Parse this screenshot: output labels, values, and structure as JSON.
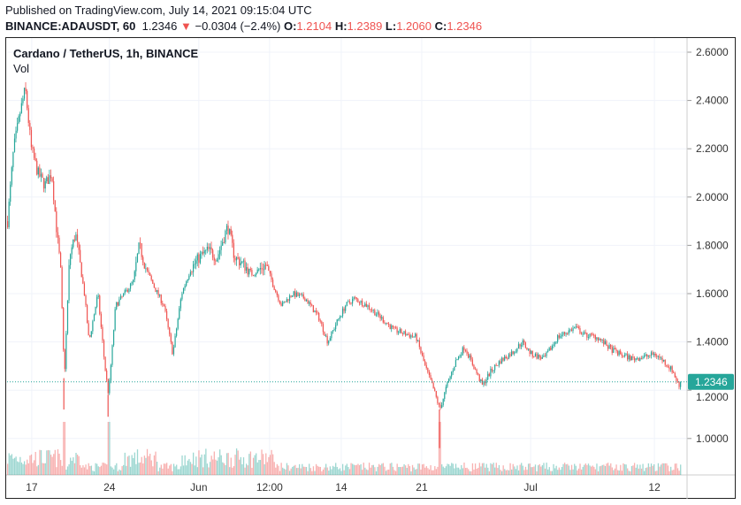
{
  "header": {
    "published": "Published on TradingView.com, July 14, 2021 09:15:04 UTC",
    "symbol": "BINANCE:ADAUSDT, 60",
    "last": "1.2346",
    "arrow": "▼",
    "change": "−0.0304 (−2.4%)",
    "o_label": "O:",
    "o": "1.2104",
    "h_label": "H:",
    "h": "1.2389",
    "l_label": "L:",
    "l": "1.2060",
    "c_label": "C:",
    "c": "1.2346"
  },
  "legend": {
    "title": "Cardano / TetherUS, 1h, BINANCE",
    "vol": "Vol"
  },
  "colors": {
    "up": "#26a69a",
    "down": "#ef5350"
  },
  "chart_data": {
    "type": "candlestick",
    "title": "Cardano / TetherUS, 1h, BINANCE",
    "ylim": [
      0.8,
      2.65
    ],
    "yticks": [
      "2.6000",
      "2.4000",
      "2.2000",
      "2.0000",
      "1.8000",
      "1.6000",
      "1.4000",
      "1.2000",
      "1.0000"
    ],
    "xticks": [
      {
        "label": "17",
        "h": 53
      },
      {
        "label": "24",
        "h": 220
      },
      {
        "label": "Jun",
        "h": 412
      },
      {
        "label": "12:00",
        "h": 564
      },
      {
        "label": "14",
        "h": 718
      },
      {
        "label": "21",
        "h": 891
      },
      {
        "label": "Jul",
        "h": 1125
      },
      {
        "label": "12",
        "h": 1391
      }
    ],
    "current_price": "1.2346",
    "close_path_hours_price": [
      [
        0,
        1.9
      ],
      [
        13,
        2.2
      ],
      [
        27,
        2.35
      ],
      [
        38,
        2.45
      ],
      [
        51,
        2.2
      ],
      [
        65,
        2.1
      ],
      [
        80,
        2.05
      ],
      [
        95,
        2.1
      ],
      [
        106,
        1.85
      ],
      [
        114,
        1.7
      ],
      [
        122,
        1.25
      ],
      [
        133,
        1.75
      ],
      [
        146,
        1.85
      ],
      [
        165,
        1.6
      ],
      [
        175,
        1.4
      ],
      [
        194,
        1.6
      ],
      [
        209,
        1.3
      ],
      [
        217,
        1.18
      ],
      [
        232,
        1.55
      ],
      [
        251,
        1.6
      ],
      [
        270,
        1.65
      ],
      [
        283,
        1.8
      ],
      [
        298,
        1.7
      ],
      [
        317,
        1.62
      ],
      [
        336,
        1.55
      ],
      [
        355,
        1.35
      ],
      [
        374,
        1.6
      ],
      [
        393,
        1.7
      ],
      [
        412,
        1.75
      ],
      [
        431,
        1.78
      ],
      [
        450,
        1.75
      ],
      [
        473,
        1.88
      ],
      [
        488,
        1.75
      ],
      [
        507,
        1.72
      ],
      [
        526,
        1.68
      ],
      [
        555,
        1.72
      ],
      [
        574,
        1.62
      ],
      [
        589,
        1.55
      ],
      [
        612,
        1.6
      ],
      [
        640,
        1.58
      ],
      [
        669,
        1.5
      ],
      [
        688,
        1.4
      ],
      [
        707,
        1.48
      ],
      [
        726,
        1.55
      ],
      [
        745,
        1.58
      ],
      [
        773,
        1.55
      ],
      [
        802,
        1.5
      ],
      [
        830,
        1.45
      ],
      [
        859,
        1.43
      ],
      [
        878,
        1.42
      ],
      [
        897,
        1.3
      ],
      [
        916,
        1.2
      ],
      [
        929,
        1.12
      ],
      [
        944,
        1.22
      ],
      [
        963,
        1.32
      ],
      [
        982,
        1.38
      ],
      [
        1001,
        1.3
      ],
      [
        1020,
        1.22
      ],
      [
        1039,
        1.28
      ],
      [
        1058,
        1.32
      ],
      [
        1087,
        1.36
      ],
      [
        1106,
        1.4
      ],
      [
        1125,
        1.35
      ],
      [
        1153,
        1.33
      ],
      [
        1182,
        1.42
      ],
      [
        1201,
        1.44
      ],
      [
        1220,
        1.46
      ],
      [
        1239,
        1.43
      ],
      [
        1267,
        1.42
      ],
      [
        1296,
        1.37
      ],
      [
        1315,
        1.35
      ],
      [
        1343,
        1.33
      ],
      [
        1372,
        1.34
      ],
      [
        1391,
        1.35
      ],
      [
        1410,
        1.32
      ],
      [
        1429,
        1.28
      ],
      [
        1444,
        1.21
      ],
      [
        1448,
        1.2346
      ]
    ]
  }
}
